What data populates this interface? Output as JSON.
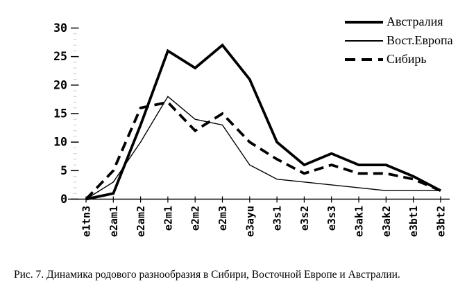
{
  "figure": {
    "caption": "Рис. 7. Динамика родового разнообразия в Сибири, Восточной Европе и Австралии."
  },
  "chart_data": {
    "type": "line",
    "title": "",
    "xlabel": "",
    "ylabel": "",
    "categories": [
      "e1tn3",
      "e2am1",
      "e2am2",
      "e2m1",
      "e2m2",
      "e2m3",
      "e3ayu",
      "e3s1",
      "e3s2",
      "e3s3",
      "e3ak1",
      "e3ak2",
      "e3bt1",
      "e3bt2"
    ],
    "series": [
      {
        "name": "Австралия",
        "style": "thick-solid",
        "values": [
          0,
          1,
          13,
          26,
          23,
          27,
          21,
          10,
          6,
          8,
          6,
          6,
          4,
          1.5
        ]
      },
      {
        "name": "Вост.Европа",
        "style": "thin-solid",
        "values": [
          0,
          3,
          10,
          18,
          14,
          13,
          6,
          3.5,
          3,
          2.5,
          2,
          1.5,
          1.5,
          1.5
        ]
      },
      {
        "name": "Сибирь",
        "style": "thick-dashed",
        "values": [
          0,
          5,
          16,
          17,
          12,
          15,
          10,
          7,
          4.5,
          6,
          4.5,
          4.5,
          3.5,
          1.5
        ]
      }
    ],
    "yticks": [
      0,
      5,
      10,
      15,
      20,
      25,
      30
    ],
    "ylim": [
      0,
      30
    ],
    "grid": false,
    "legend_position": "top-right",
    "line_color": "#000000",
    "background": "#ffffff"
  }
}
